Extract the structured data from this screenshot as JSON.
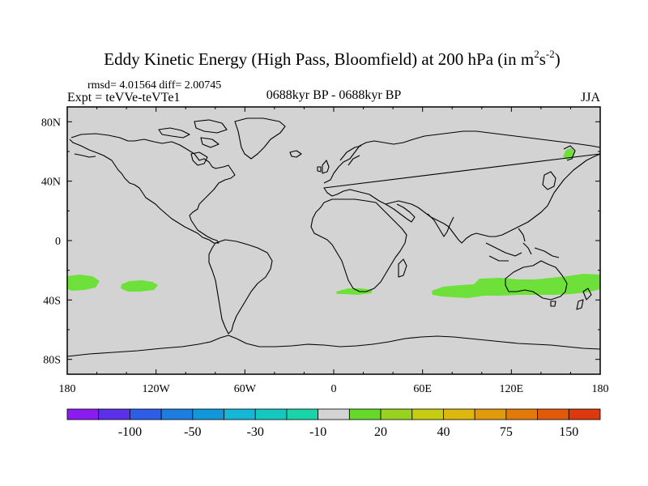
{
  "title": {
    "main": "Eddy Kinetic Energy (High Pass, Bloomfield) at 200 hPa (in m",
    "sup1": "2",
    "mid": "s",
    "sup2": "-2",
    "close": ")"
  },
  "stats": "rmsd= 4.01564 diff= 2.00745",
  "experiment": "Expt = teVVe-teVTe1",
  "period": "0688kyr BP - 0688kyr BP",
  "season": "JJA",
  "colors": {
    "background": "#d3d3d3",
    "positive_anomaly": "#6ee03a",
    "coastline": "#000000"
  },
  "map_data": {
    "projection": "cylindrical-equidistant",
    "lon_range": [
      -180,
      180
    ],
    "lat_range": [
      -90,
      90
    ],
    "lon_ticks": [
      "180",
      "120W",
      "60W",
      "0",
      "60E",
      "120E",
      "180"
    ],
    "lat_ticks": [
      "80N",
      "40N",
      "0",
      "40S",
      "80S"
    ]
  },
  "colorbar": {
    "colors": [
      "#8a1cf0",
      "#5a30e8",
      "#2f5ee6",
      "#1e7ee0",
      "#1298da",
      "#14b8d6",
      "#14c8c0",
      "#18d4a8",
      "#d3d3d3",
      "#66d82a",
      "#98d21e",
      "#c6cc12",
      "#dcb80e",
      "#e29a0c",
      "#e27a0a",
      "#e05a0a",
      "#dc3a0c"
    ],
    "labels": [
      "-100",
      "-50",
      "-30",
      "-10",
      "20",
      "40",
      "75",
      "150"
    ]
  }
}
